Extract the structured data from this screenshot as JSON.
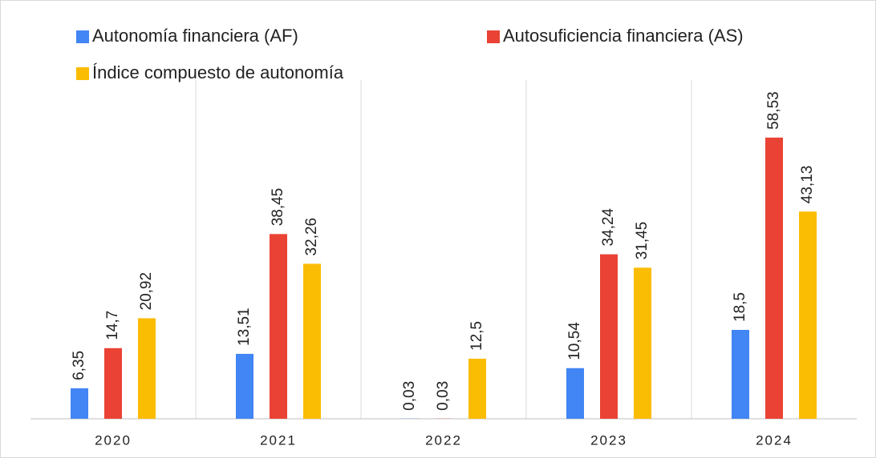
{
  "chart_data": {
    "type": "bar",
    "categories": [
      "2020",
      "2021",
      "2022",
      "2023",
      "2024"
    ],
    "series": [
      {
        "name": "Autonomía financiera (AF)",
        "color": "#4285f4",
        "values": [
          6.35,
          13.51,
          0.03,
          10.54,
          18.5
        ],
        "value_labels": [
          "6,35",
          "13,51",
          "0,03",
          "10,54",
          "18,5"
        ]
      },
      {
        "name": "Autosuficiencia financiera (AS)",
        "color": "#ea4335",
        "values": [
          14.7,
          38.45,
          0.03,
          34.24,
          58.53
        ],
        "value_labels": [
          "14,7",
          "38,45",
          "0,03",
          "34,24",
          "58,53"
        ]
      },
      {
        "name": "Índice compuesto de autonomía",
        "color": "#fbbc04",
        "values": [
          20.92,
          32.26,
          12.5,
          31.45,
          43.13
        ],
        "value_labels": [
          "20,92",
          "32,26",
          "12,5",
          "31,45",
          "43,13"
        ]
      }
    ],
    "ylim": [
      0,
      66
    ]
  }
}
